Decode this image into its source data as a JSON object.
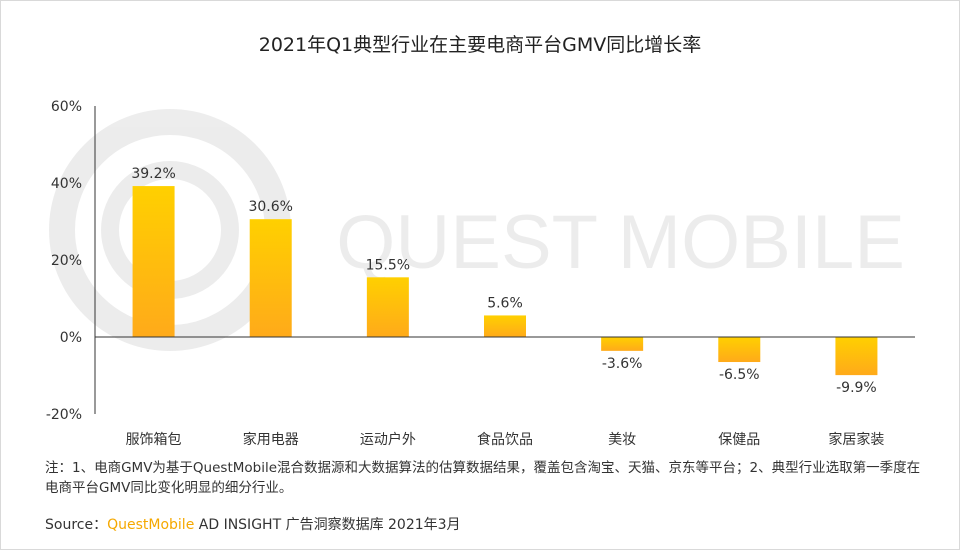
{
  "title": "2021年Q1典型行业在主要电商平台GMV同比增长率",
  "watermark": "QUEST MOBILE",
  "chart_data": {
    "type": "bar",
    "title": "2021年Q1典型行业在主要电商平台GMV同比增长率",
    "categories": [
      "服饰箱包",
      "家用电器",
      "运动户外",
      "食品饮品",
      "美妆",
      "保健品",
      "家居家装"
    ],
    "values": [
      39.2,
      30.6,
      15.5,
      5.6,
      -3.6,
      -6.5,
      -9.9
    ],
    "value_labels": [
      "39.2%",
      "30.6%",
      "15.5%",
      "5.6%",
      "-3.6%",
      "-6.5%",
      "-9.9%"
    ],
    "unit": "%",
    "ylim": [
      -20,
      60
    ],
    "yticks": [
      60,
      40,
      20,
      0,
      -20
    ],
    "ytick_labels": [
      "60%",
      "40%",
      "20%",
      "0%",
      "-20%"
    ],
    "xlabel": "",
    "ylabel": "",
    "grid": false,
    "colors": {
      "bar_top": "#ffd000",
      "bar_bottom": "#ffaa1a",
      "axis": "#333333"
    }
  },
  "note": "注：1、电商GMV为基于QuestMobile混合数据源和大数据算法的估算数据结果，覆盖包含淘宝、天猫、京东等平台；2、典型行业选取第一季度在电商平台GMV同比变化明显的细分行业。",
  "source": {
    "prefix": "Source：",
    "brand": "QuestMobile",
    "rest": " AD INSIGHT 广告洞察数据库 2021年3月"
  }
}
